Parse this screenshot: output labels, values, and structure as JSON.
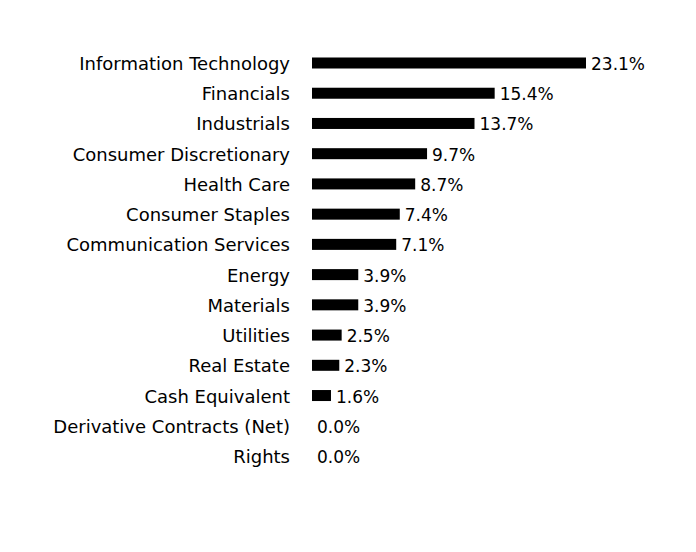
{
  "chart_data": {
    "type": "bar",
    "orientation": "horizontal",
    "categories": [
      "Information Technology",
      "Financials",
      "Industrials",
      "Consumer Discretionary",
      "Health Care",
      "Consumer Staples",
      "Communication Services",
      "Energy",
      "Materials",
      "Utilities",
      "Real Estate",
      "Cash Equivalent",
      "Derivative Contracts (Net)",
      "Rights"
    ],
    "values": [
      23.1,
      15.4,
      13.7,
      9.7,
      8.7,
      7.4,
      7.1,
      3.9,
      3.9,
      2.5,
      2.3,
      1.6,
      0.0,
      0.0
    ],
    "value_labels": [
      "23.1%",
      "15.4%",
      "13.7%",
      "9.7%",
      "8.7%",
      "7.4%",
      "7.1%",
      "3.9%",
      "3.9%",
      "2.5%",
      "2.3%",
      "1.6%",
      "0.0%",
      "0.0%"
    ],
    "color": "#000000",
    "xlim": [
      0,
      23.1
    ],
    "data_labels": true,
    "tick_labels": "y",
    "grid": false
  }
}
